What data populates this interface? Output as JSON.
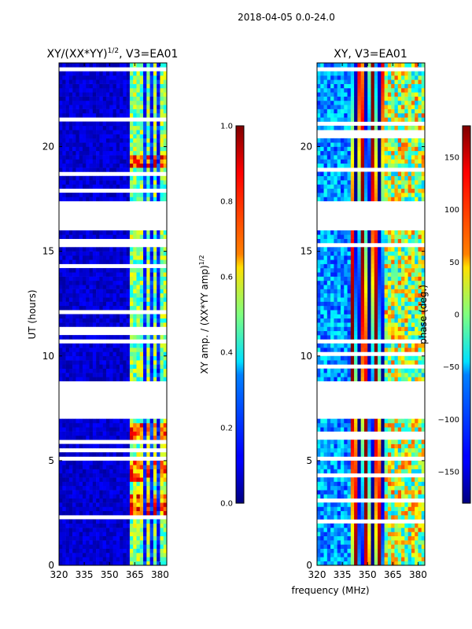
{
  "figure_title": "2018-04-05 0.0-24.0",
  "shared_xlabel": "frequency (MHz)",
  "chart_data": [
    {
      "type": "heatmap",
      "title_main": "XY/(XX*YY)",
      "title_exp": "1/2",
      "title_suffix": ", V3=EA01",
      "xlabel": "",
      "ylabel": "UT (hours)",
      "xlim": [
        320,
        384
      ],
      "ylim": [
        0,
        24
      ],
      "x_ticks": [
        320,
        335,
        350,
        365,
        380
      ],
      "y_ticks": [
        0,
        5,
        10,
        15,
        20
      ],
      "colorbar": {
        "label_main": "XY amp. / (XX*YY amp)",
        "label_exp": "1/2",
        "range": [
          0.0,
          1.0
        ],
        "ticks": [
          "0.0",
          "0.2",
          "0.4",
          "0.6",
          "0.8",
          "1.0"
        ],
        "tick_values": [
          0.0,
          0.2,
          0.4,
          0.6,
          0.8,
          1.0
        ]
      },
      "blank_hours": [
        [
          7.0,
          8.9
        ],
        [
          16.0,
          17.5
        ]
      ],
      "band_channels_mhz": [
        363,
        367,
        372,
        376,
        381
      ],
      "hot_hours": [
        [
          2.3,
          3.4
        ],
        [
          4.0,
          5.2
        ],
        [
          6.0,
          6.7
        ],
        [
          18.9,
          19.5
        ]
      ]
    },
    {
      "type": "heatmap",
      "title_main": "XY, V3=EA01",
      "xlabel": "",
      "ylabel": "",
      "xlim": [
        320,
        384
      ],
      "ylim": [
        0,
        24
      ],
      "x_ticks": [
        320,
        335,
        350,
        365,
        380
      ],
      "y_ticks": [
        0,
        5,
        10,
        15,
        20
      ],
      "colorbar": {
        "label": "phase (deg.)",
        "range": [
          -180,
          180
        ],
        "ticks": [
          "−150",
          "−100",
          "−50",
          "0",
          "50",
          "100",
          "150"
        ],
        "tick_values": [
          -150,
          -100,
          -50,
          0,
          50,
          100,
          150
        ]
      },
      "blank_hours": [
        [
          7.0,
          8.9
        ],
        [
          16.0,
          17.5
        ]
      ]
    }
  ]
}
